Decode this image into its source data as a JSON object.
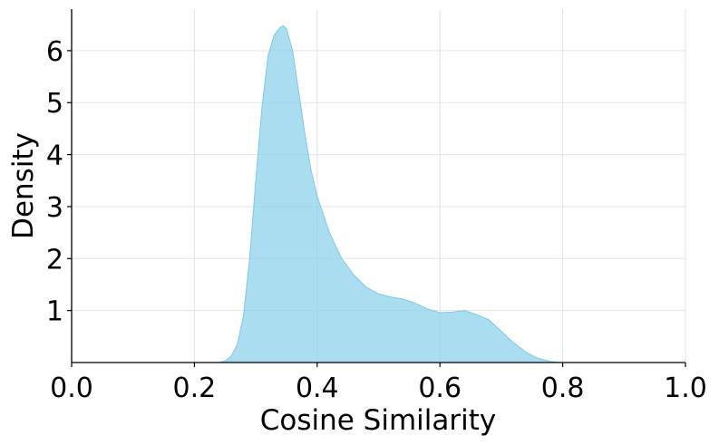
{
  "chart_data": {
    "type": "area",
    "xlabel": "Cosine Similarity",
    "ylabel": "Density",
    "xlim": [
      0.0,
      1.0
    ],
    "ylim": [
      0,
      6.8
    ],
    "x_ticks": [
      "0.0",
      "0.2",
      "0.4",
      "0.6",
      "0.8",
      "1.0"
    ],
    "y_ticks": [
      "1",
      "2",
      "3",
      "4",
      "5",
      "6"
    ],
    "grid": true,
    "series": [
      {
        "fill_color": "#87CEEB",
        "line_color": "#7ec8e3",
        "x": [
          0.24,
          0.25,
          0.26,
          0.27,
          0.28,
          0.29,
          0.3,
          0.31,
          0.32,
          0.33,
          0.34,
          0.345,
          0.35,
          0.36,
          0.37,
          0.38,
          0.39,
          0.4,
          0.42,
          0.44,
          0.46,
          0.48,
          0.5,
          0.52,
          0.54,
          0.56,
          0.58,
          0.6,
          0.62,
          0.64,
          0.66,
          0.68,
          0.7,
          0.72,
          0.74,
          0.76,
          0.78,
          0.8
        ],
        "y": [
          0.0,
          0.03,
          0.12,
          0.35,
          0.9,
          2.0,
          3.5,
          4.9,
          5.9,
          6.3,
          6.45,
          6.48,
          6.42,
          6.0,
          5.2,
          4.4,
          3.7,
          3.2,
          2.5,
          2.0,
          1.68,
          1.45,
          1.32,
          1.26,
          1.22,
          1.14,
          1.03,
          0.96,
          0.97,
          1.0,
          0.92,
          0.82,
          0.6,
          0.38,
          0.2,
          0.08,
          0.02,
          0.0
        ]
      }
    ]
  }
}
